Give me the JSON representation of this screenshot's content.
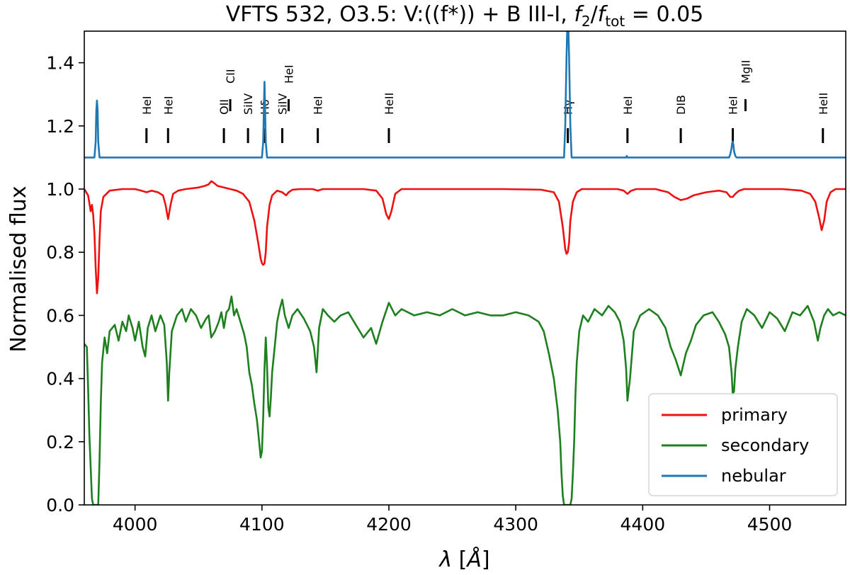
{
  "chart_data": {
    "type": "line",
    "title_parts": [
      "VFTS 532, O3.5: V:((f*)) + B III-I, ",
      "f",
      "2",
      "/",
      "f",
      "tot",
      " = 0.05"
    ],
    "xlabel_parts": [
      "λ",
      " [",
      "Å",
      "]"
    ],
    "ylabel": "Normalised flux",
    "xlim": [
      3960,
      4560
    ],
    "ylim": [
      0.0,
      1.5
    ],
    "xticks": [
      4000,
      4100,
      4200,
      4300,
      4400,
      4500
    ],
    "xtick_labels": [
      "4000",
      "4100",
      "4200",
      "4300",
      "4400",
      "4500"
    ],
    "yticks": [
      0.0,
      0.2,
      0.4,
      0.6,
      0.8,
      1.0,
      1.2,
      1.4
    ],
    "ytick_labels": [
      "0.0",
      "0.2",
      "0.4",
      "0.6",
      "0.8",
      "1.0",
      "1.2",
      "1.4"
    ],
    "grid": false,
    "legend_position": "lower-right",
    "line_ids": [
      {
        "label": "HeI",
        "wavelength": 4009,
        "tier": "low"
      },
      {
        "label": "HeI",
        "wavelength": 4026,
        "tier": "low"
      },
      {
        "label": "OII",
        "wavelength": 4070,
        "tier": "low"
      },
      {
        "label": "CII",
        "wavelength": 4075,
        "tier": "high"
      },
      {
        "label": "SiIV",
        "wavelength": 4089,
        "tier": "low"
      },
      {
        "label": "Hδ",
        "wavelength": 4102,
        "tier": "low"
      },
      {
        "label": "SiIV",
        "wavelength": 4116,
        "tier": "low"
      },
      {
        "label": "HeI",
        "wavelength": 4121,
        "tier": "high"
      },
      {
        "label": "HeI",
        "wavelength": 4144,
        "tier": "low"
      },
      {
        "label": "HeII",
        "wavelength": 4200,
        "tier": "low"
      },
      {
        "label": "Hγ",
        "wavelength": 4341,
        "tier": "low"
      },
      {
        "label": "HeI",
        "wavelength": 4388,
        "tier": "low"
      },
      {
        "label": "DIB",
        "wavelength": 4430,
        "tier": "low"
      },
      {
        "label": "HeI",
        "wavelength": 4471,
        "tier": "low"
      },
      {
        "label": "MgII",
        "wavelength": 4481,
        "tier": "high"
      },
      {
        "label": "HeII",
        "wavelength": 4542,
        "tier": "low"
      }
    ],
    "series": [
      {
        "name": "primary",
        "color": "#ee1111",
        "continuum": 1.0,
        "x": [
          3960,
          3963,
          3965,
          3966,
          3967,
          3968,
          3969,
          3970,
          3971,
          3972,
          3973,
          3975,
          3980,
          3990,
          4000,
          4005,
          4009,
          4013,
          4018,
          4022,
          4024,
          4026,
          4028,
          4030,
          4034,
          4040,
          4050,
          4055,
          4058,
          4060,
          4062,
          4065,
          4070,
          4075,
          4080,
          4085,
          4090,
          4094,
          4097,
          4099,
          4100,
          4101,
          4102,
          4103,
          4104,
          4106,
          4108,
          4112,
          4116,
          4119,
          4121,
          4124,
          4130,
          4140,
          4144,
          4148,
          4160,
          4180,
          4190,
          4195,
          4198,
          4200,
          4202,
          4205,
          4210,
          4230,
          4260,
          4290,
          4320,
          4330,
          4334,
          4337,
          4339,
          4340,
          4341,
          4342,
          4343,
          4345,
          4348,
          4352,
          4360,
          4380,
          4385,
          4388,
          4391,
          4395,
          4410,
          4420,
          4425,
          4430,
          4435,
          4440,
          4450,
          4460,
          4466,
          4469,
          4471,
          4473,
          4476,
          4480,
          4490,
          4510,
          4525,
          4532,
          4536,
          4539,
          4541,
          4543,
          4545,
          4548,
          4552,
          4556,
          4560
        ],
        "y": [
          1.0,
          0.98,
          0.93,
          0.95,
          0.92,
          0.86,
          0.75,
          0.67,
          0.72,
          0.84,
          0.93,
          0.975,
          0.995,
          1.0,
          1.0,
          0.995,
          0.99,
          0.995,
          0.99,
          0.98,
          0.95,
          0.905,
          0.95,
          0.985,
          0.995,
          1.0,
          1.005,
          1.01,
          1.015,
          1.025,
          1.02,
          1.01,
          1.005,
          1.0,
          0.995,
          0.985,
          0.96,
          0.9,
          0.83,
          0.78,
          0.765,
          0.76,
          0.765,
          0.8,
          0.88,
          0.95,
          0.98,
          0.995,
          0.99,
          0.98,
          0.99,
          0.998,
          1.0,
          1.0,
          0.995,
          1.0,
          1.0,
          1.0,
          0.995,
          0.97,
          0.92,
          0.905,
          0.93,
          0.985,
          1.0,
          1.0,
          1.0,
          1.0,
          0.998,
          0.99,
          0.96,
          0.88,
          0.81,
          0.795,
          0.8,
          0.83,
          0.9,
          0.96,
          0.99,
          1.0,
          1.0,
          1.0,
          0.995,
          0.985,
          0.995,
          1.0,
          1.0,
          0.99,
          0.975,
          0.965,
          0.97,
          0.98,
          0.99,
          0.995,
          0.99,
          0.975,
          0.975,
          0.985,
          0.995,
          1.0,
          1.0,
          1.0,
          0.995,
          0.985,
          0.96,
          0.91,
          0.87,
          0.9,
          0.96,
          0.99,
          1.0,
          1.0,
          1.0
        ]
      },
      {
        "name": "secondary",
        "color": "#1e7f1e",
        "continuum": 0.6,
        "x": [
          3960,
          3962,
          3963,
          3964,
          3965,
          3966,
          3967,
          3968,
          3969,
          3970,
          3971,
          3972,
          3973,
          3974,
          3976,
          3978,
          3980,
          3984,
          3987,
          3990,
          3993,
          3995,
          3998,
          4000,
          4003,
          4006,
          4008,
          4010,
          4013,
          4016,
          4020,
          4023,
          4025,
          4026,
          4027,
          4029,
          4033,
          4037,
          4040,
          4044,
          4048,
          4052,
          4056,
          4058,
          4060,
          4063,
          4066,
          4068,
          4070,
          4072,
          4074,
          4076,
          4078,
          4080,
          4083,
          4086,
          4088,
          4090,
          4092,
          4094,
          4096,
          4098,
          4099,
          4100,
          4101,
          4102,
          4103,
          4104,
          4105,
          4106,
          4107,
          4108,
          4110,
          4112,
          4114,
          4116,
          4118,
          4121,
          4124,
          4128,
          4133,
          4138,
          4141,
          4143,
          4145,
          4148,
          4152,
          4157,
          4162,
          4168,
          4174,
          4180,
          4186,
          4190,
          4195,
          4200,
          4205,
          4210,
          4220,
          4230,
          4240,
          4250,
          4260,
          4270,
          4280,
          4290,
          4300,
          4310,
          4318,
          4322,
          4326,
          4330,
          4333,
          4335,
          4336,
          4337,
          4338,
          4339,
          4340,
          4341,
          4342,
          4343,
          4344,
          4345,
          4346,
          4347,
          4348,
          4350,
          4353,
          4357,
          4362,
          4368,
          4373,
          4378,
          4382,
          4385,
          4387,
          4388,
          4390,
          4393,
          4398,
          4405,
          4412,
          4418,
          4422,
          4426,
          4430,
          4434,
          4438,
          4442,
          4448,
          4455,
          4460,
          4465,
          4468,
          4470,
          4471,
          4472,
          4473,
          4475,
          4478,
          4482,
          4488,
          4494,
          4500,
          4506,
          4512,
          4518,
          4524,
          4530,
          4535,
          4538,
          4540,
          4543,
          4546,
          4550,
          4555,
          4560
        ],
        "y": [
          0.51,
          0.5,
          0.37,
          0.22,
          0.12,
          0.02,
          0.0,
          0.0,
          0.0,
          0.0,
          0.0,
          0.14,
          0.32,
          0.45,
          0.53,
          0.48,
          0.55,
          0.57,
          0.52,
          0.58,
          0.55,
          0.6,
          0.56,
          0.52,
          0.58,
          0.5,
          0.47,
          0.56,
          0.6,
          0.55,
          0.6,
          0.57,
          0.45,
          0.33,
          0.42,
          0.55,
          0.6,
          0.62,
          0.58,
          0.62,
          0.6,
          0.56,
          0.59,
          0.6,
          0.53,
          0.55,
          0.58,
          0.61,
          0.56,
          0.61,
          0.62,
          0.66,
          0.6,
          0.62,
          0.58,
          0.54,
          0.5,
          0.42,
          0.38,
          0.32,
          0.27,
          0.19,
          0.15,
          0.17,
          0.28,
          0.43,
          0.53,
          0.44,
          0.31,
          0.28,
          0.34,
          0.42,
          0.5,
          0.58,
          0.62,
          0.65,
          0.6,
          0.56,
          0.6,
          0.62,
          0.59,
          0.55,
          0.5,
          0.42,
          0.56,
          0.62,
          0.6,
          0.58,
          0.6,
          0.61,
          0.57,
          0.53,
          0.56,
          0.51,
          0.58,
          0.64,
          0.6,
          0.62,
          0.6,
          0.61,
          0.6,
          0.62,
          0.6,
          0.61,
          0.6,
          0.6,
          0.61,
          0.6,
          0.58,
          0.55,
          0.48,
          0.4,
          0.3,
          0.2,
          0.1,
          0.03,
          0.0,
          0.0,
          0.0,
          0.0,
          0.0,
          0.0,
          0.02,
          0.1,
          0.2,
          0.35,
          0.45,
          0.55,
          0.6,
          0.58,
          0.62,
          0.6,
          0.63,
          0.61,
          0.58,
          0.52,
          0.43,
          0.33,
          0.4,
          0.55,
          0.6,
          0.62,
          0.6,
          0.56,
          0.5,
          0.46,
          0.41,
          0.48,
          0.52,
          0.57,
          0.6,
          0.61,
          0.58,
          0.54,
          0.5,
          0.42,
          0.35,
          0.36,
          0.43,
          0.5,
          0.58,
          0.62,
          0.6,
          0.56,
          0.61,
          0.59,
          0.55,
          0.61,
          0.6,
          0.63,
          0.58,
          0.52,
          0.56,
          0.6,
          0.62,
          0.6,
          0.61,
          0.6
        ]
      },
      {
        "name": "nebular",
        "color": "#1f77b4",
        "continuum": 1.1,
        "x": [
          3960,
          3968,
          3969,
          3969.5,
          3970,
          3970.5,
          3971,
          3972,
          4100,
          4101,
          4101.5,
          4102,
          4102.5,
          4103,
          4104,
          4338,
          4339,
          4340,
          4340.5,
          4341,
          4341.5,
          4342,
          4343,
          4344,
          4386,
          4387,
          4387.5,
          4388,
          4389,
          4468,
          4469,
          4470,
          4470.5,
          4471,
          4471.5,
          4472,
          4473,
          4474,
          4560
        ],
        "y": [
          1.1,
          1.1,
          1.15,
          1.25,
          1.28,
          1.25,
          1.15,
          1.1,
          1.1,
          1.15,
          1.25,
          1.34,
          1.25,
          1.15,
          1.1,
          1.1,
          1.2,
          1.42,
          1.5,
          1.5,
          1.5,
          1.42,
          1.2,
          1.1,
          1.1,
          1.1,
          1.105,
          1.1,
          1.1,
          1.1,
          1.11,
          1.13,
          1.145,
          1.15,
          1.14,
          1.12,
          1.105,
          1.1,
          1.1
        ]
      }
    ]
  }
}
